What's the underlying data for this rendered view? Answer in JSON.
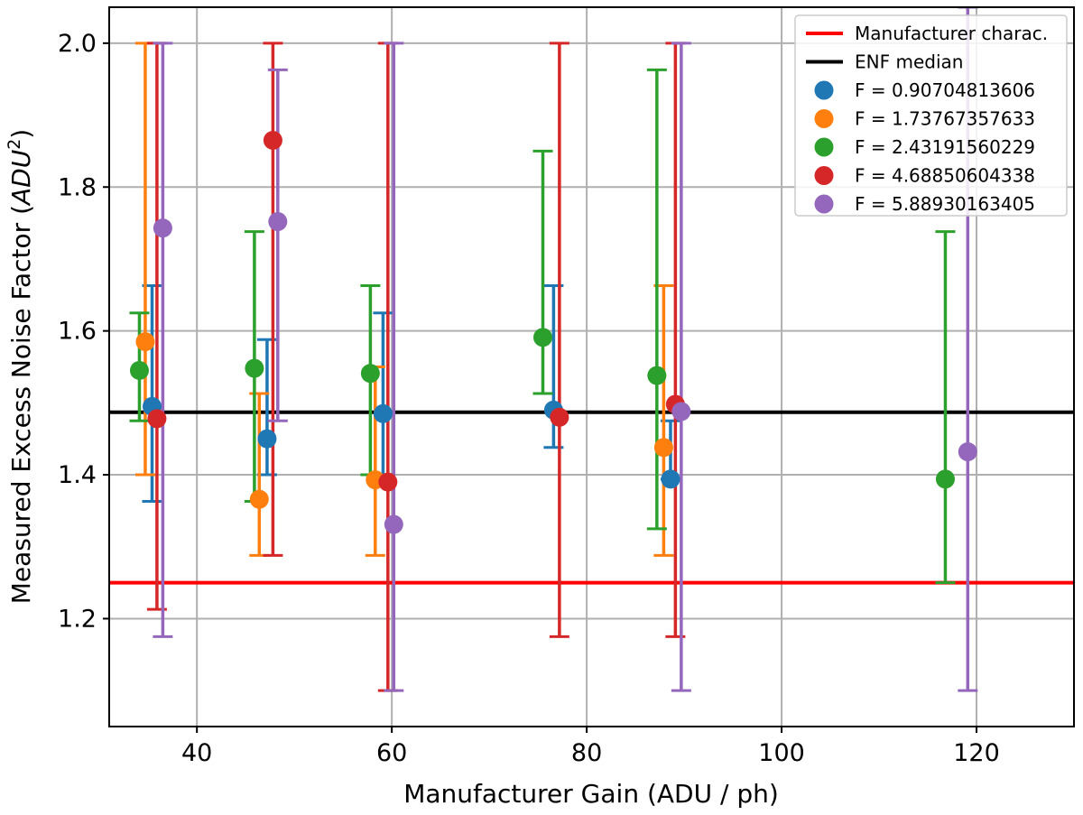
{
  "chart_data": {
    "type": "scatter",
    "title": "",
    "xlabel": "Manufacturer Gain (ADU / ph)",
    "ylabel": {
      "prefix": "Measured Excess Noise Factor (",
      "italic": "ADU",
      "sup": "2",
      "suffix": ")"
    },
    "xlim": [
      31,
      130
    ],
    "ylim": [
      1.05,
      2.05
    ],
    "xticks": [
      40,
      60,
      80,
      100,
      120
    ],
    "yticks": [
      1.2,
      1.4,
      1.6,
      1.8,
      2.0
    ],
    "xtick_labels": [
      "40",
      "60",
      "80",
      "100",
      "120"
    ],
    "ytick_labels": [
      "1.2",
      "1.4",
      "1.6",
      "1.8",
      "2.0"
    ],
    "grid": true,
    "legend_position": "top-right",
    "hlines": [
      {
        "name": "Manufacturer charac.",
        "y": 1.25,
        "color": "#ff0000"
      },
      {
        "name": "ENF median",
        "y": 1.487,
        "color": "#000000"
      }
    ],
    "series": [
      {
        "name": "F = 0.90704813606",
        "color": "#1f77b4",
        "points": [
          {
            "x": 35.4,
            "y": 1.495,
            "ylo": 1.363,
            "yhi": 1.663
          },
          {
            "x": 47.2,
            "y": 1.45,
            "ylo": 1.4,
            "yhi": 1.588
          },
          {
            "x": 59.1,
            "y": 1.485,
            "ylo": 1.4,
            "yhi": 1.625
          },
          {
            "x": 76.6,
            "y": 1.49,
            "ylo": 1.438,
            "yhi": 1.663
          },
          {
            "x": 88.6,
            "y": 1.394,
            "ylo": 1.394,
            "yhi": 1.475
          }
        ]
      },
      {
        "name": "F = 1.73767357633",
        "color": "#ff7f0e",
        "points": [
          {
            "x": 34.7,
            "y": 1.585,
            "ylo": 1.4,
            "yhi": 2.0
          },
          {
            "x": 46.4,
            "y": 1.366,
            "ylo": 1.288,
            "yhi": 1.513
          },
          {
            "x": 58.3,
            "y": 1.393,
            "ylo": 1.288,
            "yhi": 1.55
          },
          {
            "x": 87.9,
            "y": 1.438,
            "ylo": 1.288,
            "yhi": 1.663
          }
        ]
      },
      {
        "name": "F = 2.43191560229",
        "color": "#2ca02c",
        "points": [
          {
            "x": 34.1,
            "y": 1.545,
            "ylo": 1.475,
            "yhi": 1.625
          },
          {
            "x": 45.9,
            "y": 1.548,
            "ylo": 1.363,
            "yhi": 1.738
          },
          {
            "x": 57.8,
            "y": 1.541,
            "ylo": 1.4,
            "yhi": 1.663
          },
          {
            "x": 75.5,
            "y": 1.591,
            "ylo": 1.513,
            "yhi": 1.85
          },
          {
            "x": 87.2,
            "y": 1.538,
            "ylo": 1.325,
            "yhi": 1.963
          },
          {
            "x": 116.8,
            "y": 1.394,
            "ylo": 1.25,
            "yhi": 1.738
          }
        ]
      },
      {
        "name": "F = 4.68850604338",
        "color": "#d62728",
        "points": [
          {
            "x": 35.9,
            "y": 1.478,
            "ylo": 1.213,
            "yhi": 2.0
          },
          {
            "x": 47.8,
            "y": 1.865,
            "ylo": 1.288,
            "yhi": 2.0
          },
          {
            "x": 59.6,
            "y": 1.39,
            "ylo": 1.1,
            "yhi": 2.0
          },
          {
            "x": 77.2,
            "y": 1.48,
            "ylo": 1.175,
            "yhi": 2.0
          },
          {
            "x": 89.1,
            "y": 1.498,
            "ylo": 1.175,
            "yhi": 2.0
          }
        ]
      },
      {
        "name": "F = 5.88930163405",
        "color": "#9467bd",
        "points": [
          {
            "x": 36.5,
            "y": 1.743,
            "ylo": 1.175,
            "yhi": 2.0
          },
          {
            "x": 48.3,
            "y": 1.752,
            "ylo": 1.475,
            "yhi": 1.963
          },
          {
            "x": 60.2,
            "y": 1.331,
            "ylo": 1.1,
            "yhi": 2.0
          },
          {
            "x": 89.7,
            "y": 1.488,
            "ylo": 1.1,
            "yhi": 2.0
          },
          {
            "x": 119.1,
            "y": 1.432,
            "ylo": 1.1,
            "yhi": 2.05
          }
        ]
      }
    ]
  }
}
